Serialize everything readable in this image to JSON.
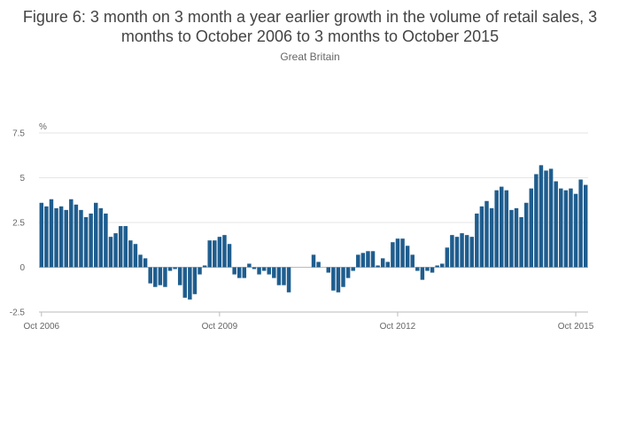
{
  "chart_data": {
    "type": "bar",
    "title": "Figure 6: 3 month on 3 month a year earlier growth in the volume of retail sales, 3 months to October 2006 to 3 months to October 2015",
    "subtitle": "Great Britain",
    "ylabel": "%",
    "xlabel": "",
    "ylim": [
      -2.5,
      7.5
    ],
    "y_ticks": [
      "7.5",
      "5",
      "2.5",
      "0",
      "-2.5"
    ],
    "y_tick_values": [
      7.5,
      5,
      2.5,
      0,
      -2.5
    ],
    "x_tick_labels": [
      "Oct 2006",
      "Oct 2009",
      "Oct 2012",
      "Oct 2015"
    ],
    "x_tick_indices": [
      0,
      36,
      72,
      108
    ],
    "bar_color": "#1f5d8e",
    "values": [
      3.6,
      3.4,
      3.8,
      3.3,
      3.4,
      3.2,
      3.8,
      3.5,
      3.2,
      2.8,
      3.0,
      3.6,
      3.3,
      3.0,
      1.7,
      1.9,
      2.3,
      2.3,
      1.5,
      1.3,
      0.7,
      0.5,
      -0.9,
      -1.1,
      -1.0,
      -1.1,
      -0.2,
      -0.1,
      -1.0,
      -1.7,
      -1.8,
      -1.5,
      -0.4,
      0.1,
      1.5,
      1.5,
      1.7,
      1.8,
      1.3,
      -0.4,
      -0.6,
      -0.6,
      0.2,
      -0.1,
      -0.4,
      -0.2,
      -0.4,
      -0.6,
      -1.0,
      -1.0,
      -1.4,
      0.0,
      0.0,
      0.0,
      0.0,
      0.7,
      0.3,
      0.0,
      -0.3,
      -1.3,
      -1.4,
      -1.1,
      -0.6,
      -0.2,
      0.7,
      0.8,
      0.9,
      0.9,
      0.1,
      0.5,
      0.3,
      1.4,
      1.6,
      1.6,
      1.2,
      0.7,
      -0.2,
      -0.7,
      -0.2,
      -0.3,
      0.1,
      0.2,
      1.1,
      1.8,
      1.7,
      1.9,
      1.8,
      1.7,
      3.0,
      3.4,
      3.7,
      3.3,
      4.3,
      4.5,
      4.3,
      3.2,
      3.3,
      2.8,
      3.6,
      4.4,
      5.2,
      5.7,
      5.4,
      5.5,
      4.8,
      4.4,
      4.3,
      4.4,
      4.1,
      4.9,
      4.6
    ]
  }
}
